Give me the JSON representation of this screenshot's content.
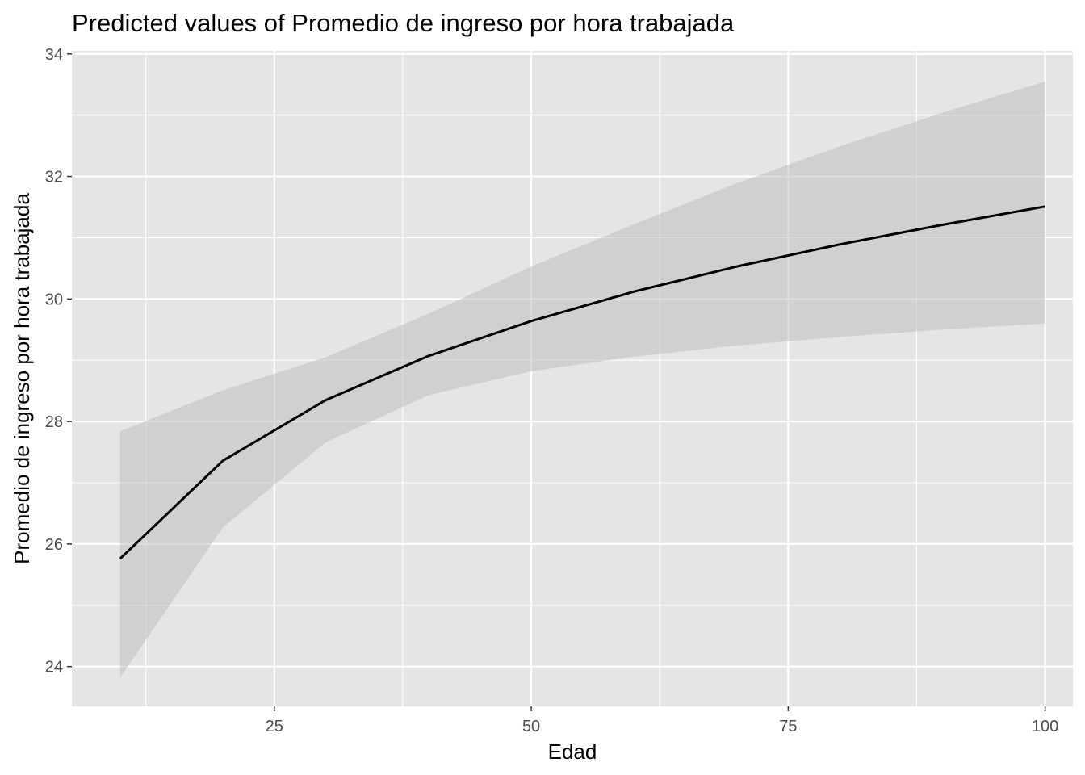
{
  "chart_data": {
    "type": "line",
    "title": "Predicted values of Promedio de ingreso por hora trabajada",
    "xlabel": "Edad",
    "ylabel": "Promedio de ingreso por hora trabajada",
    "xlim": [
      5.3,
      102.7
    ],
    "ylim": [
      23.35,
      34.05
    ],
    "x_ticks": [
      25,
      50,
      75,
      100
    ],
    "x_tick_labels": [
      "25",
      "50",
      "75",
      "100"
    ],
    "x_minor_ticks": [
      12.5,
      37.5,
      62.5,
      87.5
    ],
    "y_ticks": [
      24,
      26,
      28,
      30,
      32,
      34
    ],
    "y_tick_labels": [
      "24",
      "26",
      "28",
      "30",
      "32",
      "34"
    ],
    "y_minor_ticks": [
      25,
      27,
      29,
      31,
      33
    ],
    "grid": true,
    "legend": "none",
    "series": [
      {
        "x": [
          10,
          20,
          30,
          40,
          50,
          60,
          70,
          80,
          90,
          100
        ],
        "values": [
          25.76,
          27.36,
          28.35,
          29.07,
          29.64,
          30.12,
          30.53,
          30.89,
          31.21,
          31.51
        ],
        "lower": [
          23.82,
          26.27,
          27.66,
          28.43,
          28.82,
          29.06,
          29.24,
          29.38,
          29.5,
          29.6
        ],
        "upper": [
          27.84,
          28.51,
          29.05,
          29.76,
          30.53,
          31.22,
          31.89,
          32.49,
          33.04,
          33.55
        ]
      }
    ],
    "colors": {
      "panel": "#e5e5e5",
      "grid": "#ffffff",
      "line": "#000000",
      "ribbon": "#bfbfbf",
      "tick": "#333333",
      "tick_label": "#4d4d4d"
    }
  }
}
